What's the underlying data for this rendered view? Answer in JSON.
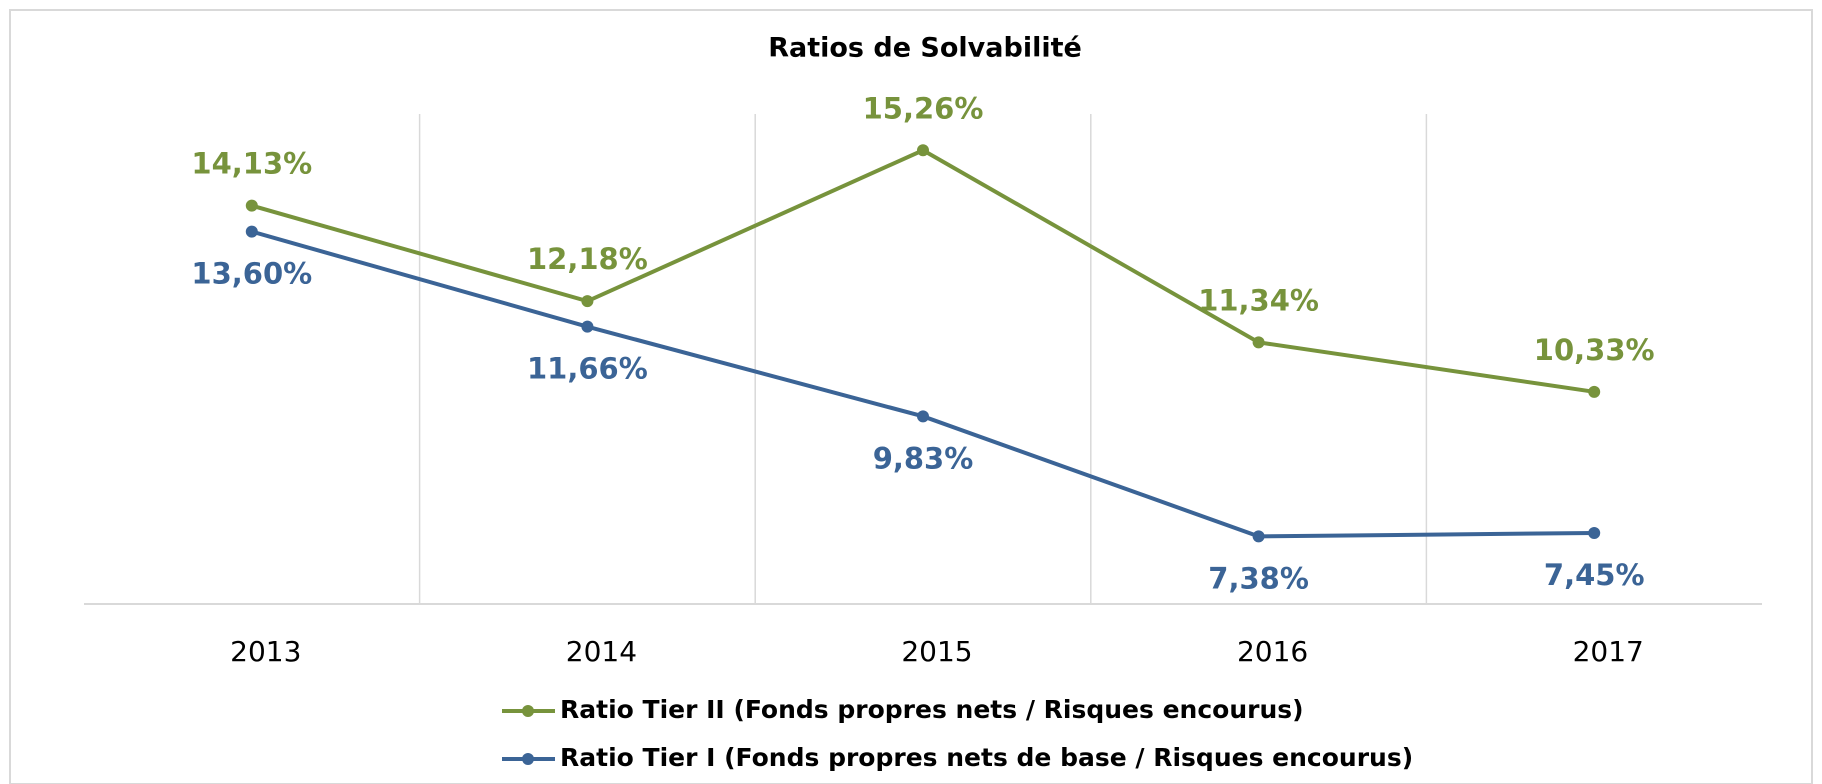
{
  "chart_data": {
    "type": "line",
    "title": "Ratios de Solvabilité",
    "categories": [
      "2013",
      "2014",
      "2015",
      "2016",
      "2017"
    ],
    "ylim": [
      6,
      16
    ],
    "grid": true,
    "legend": "bottom",
    "series": [
      {
        "name": "Ratio Tier II (Fonds propres nets / Risques encourus)",
        "color": "#77933c",
        "label_position": "above",
        "values": [
          14.13,
          12.18,
          15.26,
          11.34,
          10.33
        ],
        "value_labels": [
          "14,13%",
          "12,18%",
          "15,26%",
          "11,34%",
          "10,33%"
        ]
      },
      {
        "name": "Ratio Tier I (Fonds propres nets de base / Risques encourus)",
        "color": "#3b6496",
        "label_position": "below",
        "values": [
          13.6,
          11.66,
          9.83,
          7.38,
          7.45
        ],
        "value_labels": [
          "13,60%",
          "11,66%",
          "9,83%",
          "7,38%",
          "7,45%"
        ]
      }
    ]
  }
}
